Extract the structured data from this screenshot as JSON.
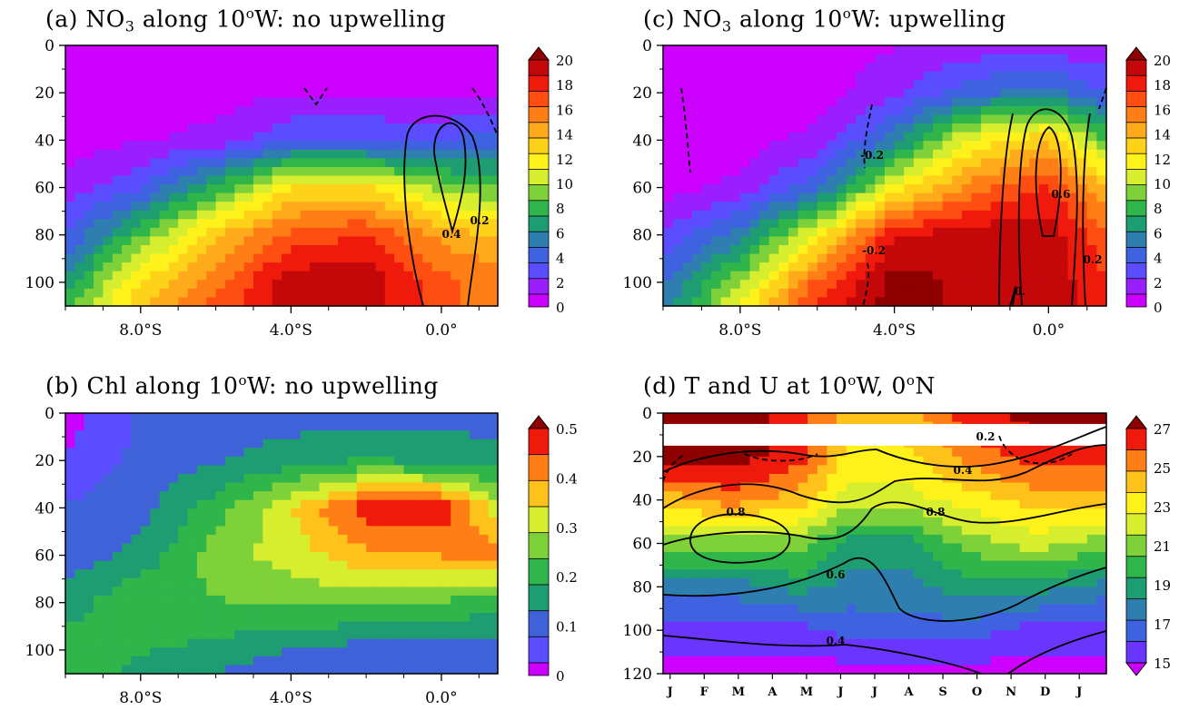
{
  "panels": {
    "a": {
      "title_pre": "(a) NO",
      "title_sub": "3",
      "title_mid": " along 10",
      "title_sup": "o",
      "title_post": "W: no upwelling"
    },
    "c": {
      "title_pre": "(c) NO",
      "title_sub": "3",
      "title_mid": " along 10",
      "title_sup": "o",
      "title_post": "W: upwelling"
    },
    "b": {
      "title_pre": "(b) Chl along 10",
      "title_sup": "o",
      "title_post": "W: no upwelling"
    },
    "d": {
      "title_pre": "(d) T and U at 10",
      "title_sup": "o",
      "title_mid": "W, 0",
      "title_sup2": "o",
      "title_post": "N"
    }
  },
  "colors": {
    "no3_scale": [
      "#cc00ff",
      "#9a1fff",
      "#5a4cff",
      "#3f62e0",
      "#2e7fb0",
      "#1e9d72",
      "#2fb54a",
      "#7fd13a",
      "#d6ee2e",
      "#fff21a",
      "#ffd21a",
      "#ffaa1a",
      "#ff7f16",
      "#ff4e12",
      "#f01a0c",
      "#c4080a",
      "#8e0000"
    ],
    "chl_scale": [
      "#cc00ff",
      "#5a4cff",
      "#3f62d8",
      "#1e9d72",
      "#2fb54a",
      "#7fd13a",
      "#d6ee2e",
      "#ffc21a",
      "#ff7f16",
      "#f01a0c",
      "#8e0000"
    ],
    "temp_scale": [
      "#cc00ff",
      "#6a36ff",
      "#3f62e0",
      "#2e7fb0",
      "#1e9d72",
      "#2fb54a",
      "#7fd13a",
      "#d6ee2e",
      "#fff21a",
      "#ffc21a",
      "#ff7f16",
      "#f01a0c",
      "#8e0000"
    ]
  },
  "chart_data": [
    {
      "id": "a",
      "type": "heatmap",
      "title": "(a) NO3 along 10°W: no upwelling",
      "xlabel": "",
      "ylabel": "",
      "xlim": [
        -10,
        1.5
      ],
      "ylim": [
        110,
        0
      ],
      "x_ticks": [
        "8.0°S",
        "4.0°S",
        "0.0°"
      ],
      "x_tick_values": [
        -8,
        -4,
        0
      ],
      "y_ticks": [
        "0",
        "20",
        "40",
        "60",
        "80",
        "100"
      ],
      "colorbar_ticks": [
        "20",
        "18",
        "16",
        "14",
        "12",
        "10",
        "8",
        "6",
        "4",
        "2",
        "0"
      ],
      "x": [
        -10,
        -8,
        -6,
        -4,
        -2,
        0,
        1.5
      ],
      "y": [
        0,
        20,
        40,
        60,
        80,
        100,
        110
      ],
      "z": [
        [
          0,
          0,
          0,
          0,
          0,
          0,
          0
        ],
        [
          0,
          0,
          0,
          0.5,
          0.5,
          0.3,
          0.5
        ],
        [
          0,
          0.5,
          1,
          3,
          3,
          3,
          4
        ],
        [
          1,
          3,
          7,
          12,
          12,
          9,
          8
        ],
        [
          3,
          8,
          13,
          16,
          17,
          14,
          13
        ],
        [
          6,
          12,
          15,
          19,
          19,
          16,
          15
        ],
        [
          8,
          13,
          16,
          19,
          19,
          16,
          15
        ]
      ],
      "contours": [
        {
          "label": "0.4",
          "style": "solid"
        },
        {
          "label": "0.2",
          "style": "solid"
        }
      ]
    },
    {
      "id": "c",
      "type": "heatmap",
      "title": "(c) NO3 along 10°W: upwelling",
      "xlabel": "",
      "ylabel": "",
      "xlim": [
        -10,
        1.5
      ],
      "ylim": [
        110,
        0
      ],
      "x_ticks": [
        "8.0°S",
        "4.0°S",
        "0.0°"
      ],
      "x_tick_values": [
        -8,
        -4,
        0
      ],
      "y_ticks": [
        "0",
        "20",
        "40",
        "60",
        "80",
        "100"
      ],
      "colorbar_ticks": [
        "20",
        "18",
        "16",
        "14",
        "12",
        "10",
        "8",
        "6",
        "4",
        "2",
        "0"
      ],
      "x": [
        -10,
        -8,
        -6,
        -4,
        -2,
        0,
        1.5
      ],
      "y": [
        0,
        20,
        40,
        60,
        80,
        100,
        110
      ],
      "z": [
        [
          0,
          0,
          0,
          0.5,
          1,
          1,
          1
        ],
        [
          0,
          0,
          0,
          1.5,
          4,
          5,
          3
        ],
        [
          0,
          0,
          1,
          5,
          11,
          13,
          8
        ],
        [
          0,
          1,
          4,
          11,
          15,
          17,
          13
        ],
        [
          2,
          5,
          11,
          18,
          19,
          19,
          16
        ],
        [
          4,
          9,
          16,
          20,
          19,
          19,
          17
        ],
        [
          5,
          11,
          17,
          20,
          19,
          19,
          17
        ]
      ],
      "contours": [
        {
          "label": "-0.2",
          "style": "dashed"
        },
        {
          "label": "0.6",
          "style": "solid"
        },
        {
          "label": "0.2",
          "style": "solid"
        },
        {
          "label": "0.2",
          "style": "solid"
        },
        {
          "label": "0.",
          "style": "solid"
        }
      ]
    },
    {
      "id": "b",
      "type": "heatmap",
      "title": "(b) Chl along 10°W: no upwelling",
      "xlabel": "",
      "ylabel": "",
      "xlim": [
        -10,
        1.5
      ],
      "ylim": [
        110,
        0
      ],
      "x_ticks": [
        "8.0°S",
        "4.0°S",
        "0.0°"
      ],
      "x_tick_values": [
        -8,
        -4,
        0
      ],
      "y_ticks": [
        "0",
        "20",
        "40",
        "60",
        "80",
        "100"
      ],
      "colorbar_ticks": [
        "0.5",
        "0.4",
        "0.3",
        "0.2",
        "0.1",
        "0"
      ],
      "x": [
        -10,
        -8,
        -6,
        -4,
        -2,
        0,
        1.5
      ],
      "y": [
        0,
        20,
        40,
        60,
        80,
        100,
        110
      ],
      "z": [
        [
          0,
          0.08,
          0.1,
          0.1,
          0.1,
          0.1,
          0.1
        ],
        [
          0.03,
          0.09,
          0.12,
          0.15,
          0.18,
          0.16,
          0.15
        ],
        [
          0.08,
          0.11,
          0.2,
          0.32,
          0.46,
          0.46,
          0.3
        ],
        [
          0.1,
          0.14,
          0.25,
          0.3,
          0.36,
          0.38,
          0.4
        ],
        [
          0.15,
          0.22,
          0.22,
          0.24,
          0.24,
          0.22,
          0.2
        ],
        [
          0.2,
          0.18,
          0.16,
          0.12,
          0.1,
          0.1,
          0.1
        ],
        [
          0.2,
          0.16,
          0.12,
          0.1,
          0.08,
          0.08,
          0.08
        ]
      ]
    },
    {
      "id": "d",
      "type": "heatmap",
      "title": "(d) T and U at 10°W, 0°N",
      "xlabel": "",
      "ylabel": "",
      "xlim": [
        0,
        13
      ],
      "ylim": [
        120,
        0
      ],
      "x_ticks": [
        "J",
        "F",
        "M",
        "A",
        "M",
        "J",
        "J",
        "A",
        "S",
        "O",
        "N",
        "D",
        "J"
      ],
      "y_ticks": [
        "0",
        "20",
        "40",
        "60",
        "80",
        "100",
        "120"
      ],
      "colorbar_ticks": [
        "27",
        "25",
        "23",
        "21",
        "19",
        "17",
        "15"
      ],
      "x": [
        0,
        2,
        4,
        5.5,
        7,
        9,
        11,
        13
      ],
      "y": [
        0,
        20,
        40,
        60,
        80,
        100,
        120
      ],
      "z": [
        [
          27,
          27,
          26,
          24,
          24,
          26,
          27,
          27
        ],
        [
          27,
          27,
          26,
          23,
          23,
          25,
          26,
          26
        ],
        [
          24,
          25,
          24,
          22,
          22,
          23,
          24,
          24
        ],
        [
          21,
          21,
          21,
          19,
          19,
          21,
          22,
          21
        ],
        [
          18,
          18,
          19,
          18,
          18,
          19,
          19,
          18
        ],
        [
          16,
          16,
          16,
          17,
          17,
          17,
          16,
          16
        ],
        [
          15,
          15,
          15,
          15,
          15,
          15,
          15,
          15
        ]
      ],
      "contours": [
        {
          "label": "0.2",
          "style": "solid"
        },
        {
          "label": "0.4",
          "style": "solid"
        },
        {
          "label": "0.8",
          "style": "solid"
        },
        {
          "label": "0.6",
          "style": "solid"
        },
        {
          "label": "0.6",
          "style": "solid"
        },
        {
          "label": "0.4",
          "style": "solid"
        }
      ]
    }
  ]
}
